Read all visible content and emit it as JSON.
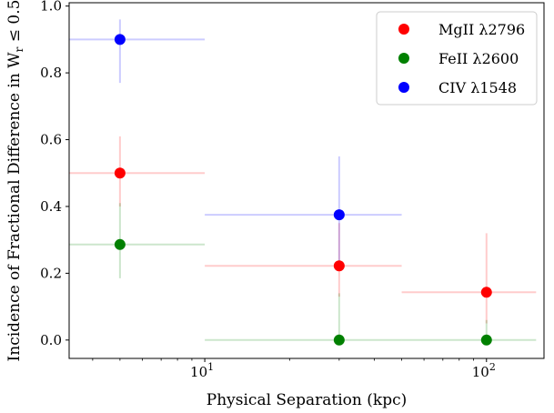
{
  "chart_data": {
    "type": "scatter",
    "xscale": "log",
    "xlim": [
      3.3,
      160
    ],
    "ylim": [
      -0.055,
      1.01
    ],
    "xlabel": "Physical Separation (kpc)",
    "ylabel": "Incidence of Fractional Difference in W",
    "ylabel_sub": "r",
    "ylabel_tail": " ≤ 0.5",
    "yticks": [
      {
        "value": 0.0,
        "label": "0.0"
      },
      {
        "value": 0.2,
        "label": "0.2"
      },
      {
        "value": 0.4,
        "label": "0.4"
      },
      {
        "value": 0.6,
        "label": "0.6"
      },
      {
        "value": 0.8,
        "label": "0.8"
      },
      {
        "value": 1.0,
        "label": "1.0"
      }
    ],
    "xticks_major": [
      {
        "value": 10,
        "base": "10",
        "exp": "1"
      },
      {
        "value": 100,
        "base": "10",
        "exp": "2"
      }
    ],
    "xticks_minor": [
      4,
      5,
      6,
      7,
      8,
      9,
      20,
      30,
      40,
      50,
      60,
      70,
      80,
      90
    ],
    "legend_position": "upper right",
    "series": [
      {
        "name": "MgII λ2796",
        "color": "#ff0000",
        "points": [
          {
            "x": 5,
            "y": 0.5,
            "xlo": 3.3,
            "xhi": 10,
            "ylo": 0.4,
            "yhi": 0.61
          },
          {
            "x": 30,
            "y": 0.222,
            "xlo": 10,
            "xhi": 50,
            "ylo": 0.13,
            "yhi": 0.35
          },
          {
            "x": 100,
            "y": 0.143,
            "xlo": 50,
            "xhi": 150,
            "ylo": 0.05,
            "yhi": 0.32
          }
        ]
      },
      {
        "name": "FeII λ2600",
        "color": "#008000",
        "points": [
          {
            "x": 5,
            "y": 0.286,
            "xlo": 3.3,
            "xhi": 10,
            "ylo": 0.185,
            "yhi": 0.41
          },
          {
            "x": 30,
            "y": 0.0,
            "xlo": 10,
            "xhi": 50,
            "ylo": 0.0,
            "yhi": 0.14
          },
          {
            "x": 100,
            "y": 0.0,
            "xlo": 50,
            "xhi": 150,
            "ylo": 0.0,
            "yhi": 0.06
          }
        ]
      },
      {
        "name": "CIV λ1548",
        "color": "#0000ff",
        "points": [
          {
            "x": 5,
            "y": 0.9,
            "xlo": 3.3,
            "xhi": 10,
            "ylo": 0.77,
            "yhi": 0.96
          },
          {
            "x": 30,
            "y": 0.375,
            "xlo": 10,
            "xhi": 50,
            "ylo": 0.22,
            "yhi": 0.55
          }
        ]
      }
    ]
  }
}
